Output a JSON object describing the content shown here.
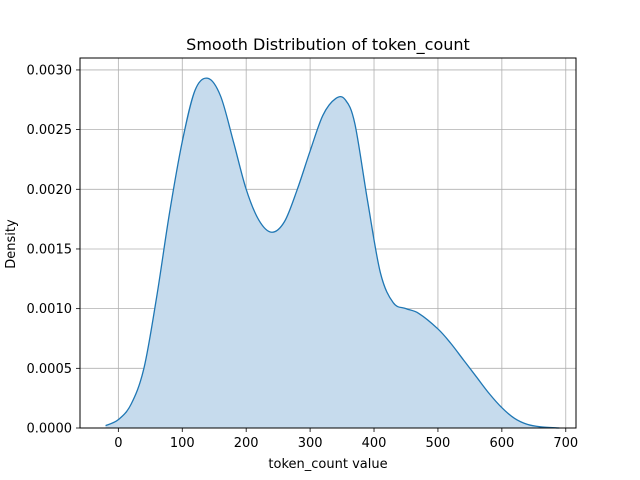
{
  "chart_data": {
    "type": "area",
    "title": "Smooth Distribution of token_count",
    "xlabel": "token_count value",
    "ylabel": "Density",
    "xlim": [
      -60,
      716
    ],
    "ylim": [
      0,
      0.0031
    ],
    "xticks": [
      0,
      100,
      200,
      300,
      400,
      500,
      600,
      700
    ],
    "xtick_labels": [
      "0",
      "100",
      "200",
      "300",
      "400",
      "500",
      "600",
      "700"
    ],
    "yticks": [
      0,
      0.0005,
      0.001,
      0.0015,
      0.002,
      0.0025,
      0.003
    ],
    "ytick_labels": [
      "0.0000",
      "0.0005",
      "0.0010",
      "0.0015",
      "0.0020",
      "0.0025",
      "0.0030"
    ],
    "grid": true,
    "colors": {
      "line": "#1f77b4",
      "fill": "#c6dbed",
      "grid": "#b0b0b0"
    },
    "series": [
      {
        "x": [
          -20,
          0,
          20,
          40,
          60,
          80,
          100,
          120,
          140,
          160,
          180,
          200,
          220,
          240,
          260,
          280,
          300,
          320,
          340,
          355,
          370,
          390,
          410,
          430,
          450,
          470,
          500,
          520,
          540,
          560,
          580,
          600,
          620,
          640,
          660,
          690
        ],
        "y": [
          2e-05,
          7e-05,
          0.0002,
          0.0005,
          0.0011,
          0.0018,
          0.0024,
          0.00283,
          0.00293,
          0.00278,
          0.0024,
          0.002,
          0.00174,
          0.00164,
          0.00173,
          0.002,
          0.00232,
          0.00262,
          0.00276,
          0.00275,
          0.00255,
          0.0019,
          0.0013,
          0.00105,
          0.001,
          0.00096,
          0.00083,
          0.00071,
          0.00057,
          0.00043,
          0.00029,
          0.00017,
          8e-05,
          3e-05,
          1e-05,
          0.0
        ]
      }
    ]
  }
}
